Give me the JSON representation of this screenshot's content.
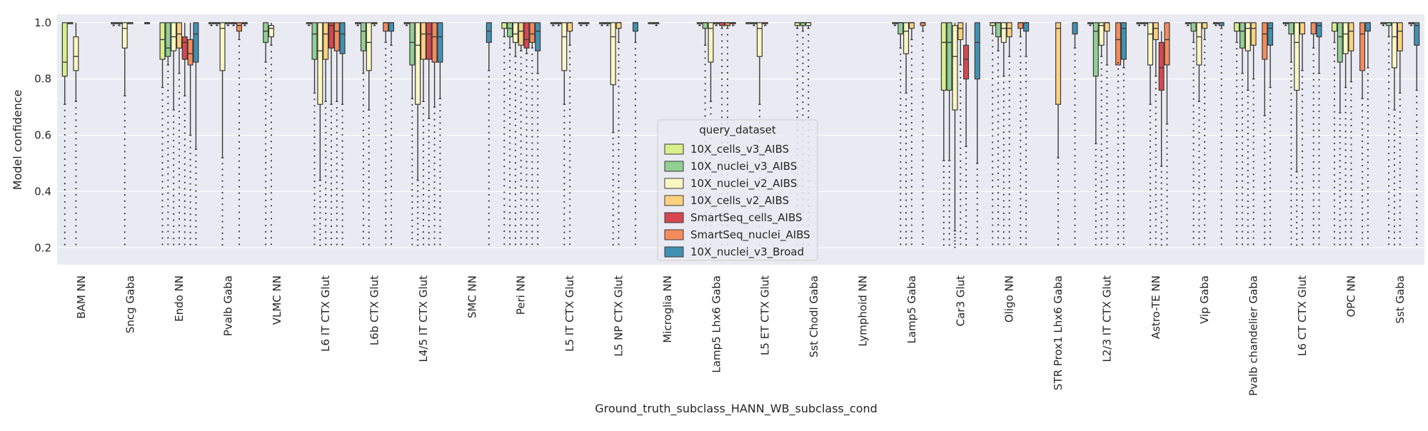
{
  "chart_data": {
    "type": "box",
    "title": "",
    "xlabel": "Ground_truth_subclass_HANN_WB_subclass_cond",
    "ylabel": "Model confidence",
    "ylim": [
      0.14,
      1.03
    ],
    "yticks": [
      0.2,
      0.4,
      0.6,
      0.8,
      1.0
    ],
    "grid": true,
    "legend": {
      "title": "query_dataset",
      "placement": "center"
    },
    "categories": [
      "BAM NN",
      "Sncg Gaba",
      "Endo NN",
      "Pvalb Gaba",
      "VLMC NN",
      "L6 IT CTX Glut",
      "L6b CTX Glut",
      "L4/5 IT CTX Glut",
      "SMC NN",
      "Peri NN",
      "L5 IT CTX Glut",
      "L5 NP CTX Glut",
      "Microglia NN",
      "Lamp5 Lhx6 Gaba",
      "L5 ET CTX Glut",
      "Sst Chodl Gaba",
      "Lymphoid NN",
      "Lamp5 Gaba",
      "Car3 Glut",
      "Oligo NN",
      "STR Prox1 Lhx6 Gaba",
      "L2/3 IT CTX Glut",
      "Astro-TE NN",
      "Vip Gaba",
      "Pvalb chandelier Gaba",
      "L6 CT CTX Glut",
      "OPC NN",
      "Sst Gaba"
    ],
    "series": [
      {
        "name": "10X_cells_v3_AIBS",
        "color": "#d9ef8b",
        "boxes": [
          [
            0.71,
            0.81,
            0.86,
            1.0,
            1.0
          ],
          [
            0.99,
            1.0,
            1.0,
            1.0,
            1.0
          ],
          [
            0.77,
            0.87,
            0.94,
            1.0,
            1.0
          ],
          [
            0.99,
            1.0,
            1.0,
            1.0,
            1.0
          ],
          null,
          [
            0.99,
            1.0,
            1.0,
            1.0,
            1.0
          ],
          [
            0.99,
            1.0,
            1.0,
            1.0,
            1.0
          ],
          [
            0.99,
            1.0,
            1.0,
            1.0,
            1.0
          ],
          null,
          [
            0.95,
            0.98,
            1.0,
            1.0,
            1.0
          ],
          [
            0.99,
            1.0,
            1.0,
            1.0,
            1.0
          ],
          [
            0.99,
            1.0,
            1.0,
            1.0,
            1.0
          ],
          [
            1.0,
            1.0,
            1.0,
            1.0,
            1.0
          ],
          [
            0.99,
            1.0,
            1.0,
            1.0,
            1.0
          ],
          [
            1.0,
            1.0,
            1.0,
            1.0,
            1.0
          ],
          [
            0.98,
            0.99,
            1.0,
            1.0,
            1.0
          ],
          null,
          [
            0.99,
            1.0,
            1.0,
            1.0,
            1.0
          ],
          [
            0.51,
            0.76,
            0.93,
            1.0,
            1.0
          ],
          [
            0.96,
            0.99,
            1.0,
            1.0,
            1.0
          ],
          null,
          [
            0.99,
            1.0,
            1.0,
            1.0,
            1.0
          ],
          [
            0.99,
            1.0,
            1.0,
            1.0,
            1.0
          ],
          [
            0.99,
            1.0,
            1.0,
            1.0,
            1.0
          ],
          [
            0.93,
            0.97,
            1.0,
            1.0,
            1.0
          ],
          [
            0.99,
            1.0,
            1.0,
            1.0,
            1.0
          ],
          [
            0.93,
            0.97,
            1.0,
            1.0,
            1.0
          ],
          [
            0.99,
            1.0,
            1.0,
            1.0,
            1.0
          ]
        ]
      },
      {
        "name": "10X_nuclei_v3_AIBS",
        "color": "#91cf93",
        "boxes": [
          [
            1.0,
            1.0,
            1.0,
            1.0,
            1.0
          ],
          [
            0.99,
            1.0,
            1.0,
            1.0,
            1.0
          ],
          [
            0.85,
            0.88,
            0.91,
            1.0,
            1.0
          ],
          [
            0.99,
            1.0,
            1.0,
            1.0,
            1.0
          ],
          [
            0.86,
            0.93,
            0.97,
            1.0,
            1.0
          ],
          [
            0.75,
            0.87,
            0.96,
            1.0,
            1.0
          ],
          [
            0.82,
            0.9,
            0.97,
            1.0,
            1.0
          ],
          [
            0.73,
            0.85,
            0.93,
            1.0,
            1.0
          ],
          null,
          [
            0.91,
            0.95,
            0.98,
            1.0,
            1.0
          ],
          [
            0.99,
            1.0,
            1.0,
            1.0,
            1.0
          ],
          [
            0.99,
            1.0,
            1.0,
            1.0,
            1.0
          ],
          [
            0.99,
            1.0,
            1.0,
            1.0,
            1.0
          ],
          [
            0.92,
            0.98,
            1.0,
            1.0,
            1.0
          ],
          [
            0.99,
            1.0,
            1.0,
            1.0,
            1.0
          ],
          [
            0.97,
            0.99,
            1.0,
            1.0,
            1.0
          ],
          null,
          [
            0.91,
            0.96,
            1.0,
            1.0,
            1.0
          ],
          [
            0.51,
            0.76,
            0.93,
            1.0,
            1.0
          ],
          [
            0.9,
            0.95,
            1.0,
            1.0,
            1.0
          ],
          null,
          [
            0.57,
            0.81,
            0.97,
            1.0,
            1.0
          ],
          [
            0.99,
            1.0,
            1.0,
            1.0,
            1.0
          ],
          [
            0.93,
            0.97,
            1.0,
            1.0,
            1.0
          ],
          [
            0.82,
            0.91,
            0.97,
            1.0,
            1.0
          ],
          [
            0.86,
            0.96,
            1.0,
            1.0,
            1.0
          ],
          [
            0.68,
            0.86,
            0.95,
            1.0,
            1.0
          ],
          [
            0.95,
            0.99,
            1.0,
            1.0,
            1.0
          ]
        ]
      },
      {
        "name": "10X_nuclei_v2_AIBS",
        "color": "#fbf8c4",
        "boxes": [
          [
            0.72,
            0.83,
            0.88,
            0.95,
            1.0
          ],
          [
            0.74,
            0.91,
            0.98,
            1.0,
            1.0
          ],
          [
            0.69,
            0.9,
            0.95,
            1.0,
            1.0
          ],
          [
            0.52,
            0.83,
            0.98,
            1.0,
            1.0
          ],
          [
            0.92,
            0.95,
            0.98,
            0.99,
            1.0
          ],
          [
            0.44,
            0.71,
            0.9,
            1.0,
            1.0
          ],
          [
            0.69,
            0.83,
            0.93,
            1.0,
            1.0
          ],
          [
            0.44,
            0.71,
            0.92,
            1.0,
            1.0
          ],
          null,
          [
            0.88,
            0.93,
            0.96,
            1.0,
            1.0
          ],
          [
            0.71,
            0.83,
            0.95,
            1.0,
            1.0
          ],
          [
            0.61,
            0.78,
            0.95,
            1.0,
            1.0
          ],
          null,
          [
            0.72,
            0.86,
            0.98,
            1.0,
            1.0
          ],
          [
            0.71,
            0.88,
            0.98,
            1.0,
            1.0
          ],
          [
            0.98,
            0.99,
            1.0,
            1.0,
            1.0
          ],
          null,
          [
            0.75,
            0.89,
            0.97,
            1.0,
            1.0
          ],
          [
            0.26,
            0.69,
            0.88,
            0.99,
            1.0
          ],
          [
            0.81,
            0.93,
            0.98,
            1.0,
            1.0
          ],
          null,
          [
            0.88,
            0.92,
            0.99,
            1.0,
            1.0
          ],
          [
            0.71,
            0.85,
            0.96,
            1.0,
            1.0
          ],
          [
            0.72,
            0.85,
            0.95,
            1.0,
            1.0
          ],
          [
            0.76,
            0.9,
            0.98,
            1.0,
            1.0
          ],
          [
            0.47,
            0.76,
            0.93,
            1.0,
            1.0
          ],
          [
            0.77,
            0.89,
            0.96,
            1.0,
            1.0
          ],
          [
            0.69,
            0.84,
            0.95,
            1.0,
            1.0
          ]
        ]
      },
      {
        "name": "10X_cells_v2_AIBS",
        "color": "#fdd180",
        "boxes": [
          [
            null,
            null,
            null,
            null,
            null
          ],
          [
            1.0,
            1.0,
            1.0,
            1.0,
            1.0
          ],
          [
            0.82,
            0.91,
            0.96,
            1.0,
            1.0
          ],
          [
            0.99,
            1.0,
            1.0,
            1.0,
            1.0
          ],
          null,
          [
            0.72,
            0.87,
            0.96,
            1.0,
            1.0
          ],
          [
            0.99,
            1.0,
            1.0,
            1.0,
            1.0
          ],
          [
            0.72,
            0.87,
            0.96,
            1.0,
            1.0
          ],
          null,
          [
            0.9,
            0.92,
            0.97,
            1.0,
            1.0
          ],
          [
            0.92,
            0.97,
            1.0,
            1.0,
            1.0
          ],
          [
            0.93,
            0.98,
            1.0,
            1.0,
            1.0
          ],
          null,
          [
            0.99,
            1.0,
            1.0,
            1.0,
            1.0
          ],
          [
            0.99,
            1.0,
            1.0,
            1.0,
            1.0
          ],
          null,
          null,
          [
            0.94,
            0.98,
            1.0,
            1.0,
            1.0
          ],
          [
            0.85,
            0.94,
            0.98,
            1.0,
            1.0
          ],
          [
            0.88,
            0.95,
            0.98,
            1.0,
            1.0
          ],
          [
            0.52,
            0.71,
            0.98,
            1.0,
            1.0
          ],
          [
            0.85,
            0.97,
            1.0,
            1.0,
            1.0
          ],
          [
            0.81,
            0.94,
            0.98,
            1.0,
            1.0
          ],
          [
            0.94,
            0.98,
            1.0,
            1.0,
            1.0
          ],
          [
            0.8,
            0.92,
            0.98,
            1.0,
            1.0
          ],
          [
            0.83,
            0.96,
            1.0,
            1.0,
            1.0
          ],
          [
            0.79,
            0.9,
            0.97,
            1.0,
            1.0
          ],
          [
            0.75,
            0.9,
            0.97,
            1.0,
            1.0
          ]
        ]
      },
      {
        "name": "SmartSeq_cells_AIBS",
        "color": "#d7474f",
        "boxes": [
          null,
          null,
          [
            0.74,
            0.87,
            0.93,
            0.95,
            1.0
          ],
          [
            0.99,
            1.0,
            1.0,
            1.0,
            1.0
          ],
          null,
          [
            0.71,
            0.91,
            0.99,
            1.0,
            1.0
          ],
          null,
          [
            0.66,
            0.87,
            0.96,
            1.0,
            1.0
          ],
          null,
          [
            0.89,
            0.91,
            0.94,
            1.0,
            1.0
          ],
          null,
          null,
          null,
          [
            0.98,
            0.99,
            1.0,
            1.0,
            1.0
          ],
          null,
          null,
          null,
          null,
          [
            0.56,
            0.8,
            0.87,
            0.92,
            1.0
          ],
          null,
          null,
          null,
          [
            0.49,
            0.76,
            0.84,
            0.93,
            0.97
          ],
          null,
          null,
          null,
          null,
          null
        ]
      },
      {
        "name": "SmartSeq_nuclei_AIBS",
        "color": "#f58b5c",
        "boxes": [
          null,
          null,
          [
            0.6,
            0.85,
            0.89,
            0.94,
            1.0
          ],
          [
            0.94,
            0.97,
            0.99,
            1.0,
            1.0
          ],
          null,
          [
            0.72,
            0.9,
            0.97,
            1.0,
            1.0
          ],
          [
            0.93,
            0.97,
            1.0,
            1.0,
            1.0
          ],
          [
            0.7,
            0.86,
            0.95,
            1.0,
            1.0
          ],
          null,
          [
            0.91,
            0.93,
            0.96,
            1.0,
            1.0
          ],
          [
            0.99,
            1.0,
            1.0,
            1.0,
            1.0
          ],
          null,
          null,
          [
            0.98,
            0.99,
            1.0,
            1.0,
            1.0
          ],
          null,
          null,
          null,
          [
            0.97,
            0.99,
            1.0,
            1.0,
            1.0
          ],
          null,
          [
            0.95,
            0.98,
            1.0,
            1.0,
            1.0
          ],
          null,
          [
            0.88,
            0.85,
            0.94,
            1.0,
            1.0
          ],
          [
            0.64,
            0.85,
            0.94,
            1.0,
            1.0
          ],
          [
            0.99,
            1.0,
            1.0,
            1.0,
            1.0
          ],
          [
            0.67,
            0.87,
            0.96,
            1.0,
            1.0
          ],
          [
            0.91,
            0.96,
            1.0,
            1.0,
            1.0
          ],
          [
            0.73,
            0.83,
            0.96,
            1.0,
            1.0
          ],
          [
            0.99,
            1.0,
            1.0,
            1.0,
            1.0
          ]
        ]
      },
      {
        "name": "10X_nuclei_v3_Broad",
        "color": "#4191b2",
        "boxes": [
          [
            null,
            null,
            null,
            null,
            null
          ],
          [
            1.0,
            1.0,
            1.0,
            1.0,
            1.0
          ],
          [
            0.55,
            0.86,
            0.96,
            1.0,
            1.0
          ],
          [
            0.99,
            1.0,
            1.0,
            1.0,
            1.0
          ],
          null,
          [
            0.71,
            0.89,
            0.96,
            1.0,
            1.0
          ],
          [
            0.92,
            0.97,
            1.0,
            1.0,
            1.0
          ],
          [
            0.73,
            0.86,
            0.95,
            1.0,
            1.0
          ],
          [
            0.83,
            0.93,
            0.97,
            1.0,
            1.0
          ],
          [
            0.82,
            0.9,
            0.97,
            1.0,
            1.0
          ],
          [
            0.99,
            1.0,
            1.0,
            1.0,
            1.0
          ],
          [
            0.93,
            0.97,
            1.0,
            1.0,
            1.0
          ],
          null,
          [
            0.99,
            1.0,
            1.0,
            1.0,
            1.0
          ],
          null,
          null,
          null,
          null,
          [
            0.5,
            0.8,
            0.93,
            1.0,
            1.0
          ],
          [
            0.88,
            0.97,
            1.0,
            1.0,
            1.0
          ],
          [
            0.91,
            0.96,
            1.0,
            1.0,
            1.0
          ],
          [
            0.84,
            0.87,
            0.98,
            1.0,
            1.0
          ],
          null,
          [
            0.98,
            0.99,
            1.0,
            1.0,
            1.0
          ],
          [
            0.77,
            0.92,
            0.98,
            1.0,
            1.0
          ],
          [
            0.82,
            0.95,
            0.99,
            1.0,
            1.0
          ],
          [
            0.84,
            0.97,
            1.0,
            1.0,
            1.0
          ],
          [
            0.76,
            0.92,
            0.99,
            1.0,
            1.0
          ]
        ]
      }
    ]
  }
}
